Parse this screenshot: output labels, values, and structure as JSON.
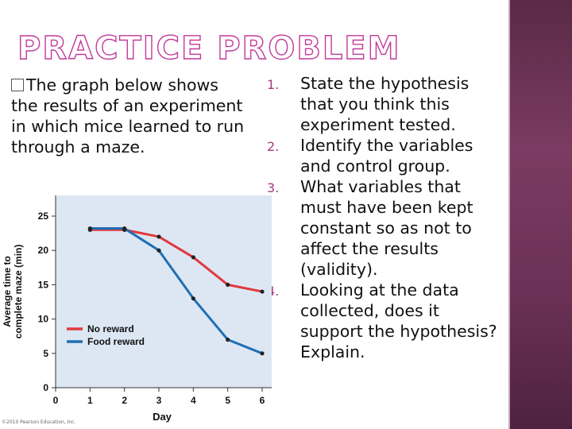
{
  "slide": {
    "title": "PRACTICE PROBLEM",
    "intro": "The graph below shows the results of an experiment in which mice learned to run through a maze.",
    "questions": [
      {
        "num": "1.",
        "text": "State the hypothesis that you think this experiment tested."
      },
      {
        "num": "2.",
        "text": "Identify the variables and control group."
      },
      {
        "num": "3.",
        "text": "What variables that must have been kept constant  so as not to affect the results (validity)."
      },
      {
        "num": "4.",
        "text": "Looking at the data collected, does it support the hypothesis? Explain."
      }
    ],
    "credit": "©2010 Pearson Education, Inc."
  },
  "colors": {
    "accent": "#c23a9a",
    "sidebar": "#6a3055",
    "no_reward": "#e0393e",
    "food_reward": "#1f6fb3"
  },
  "chart_data": {
    "type": "line",
    "x": [
      1,
      2,
      3,
      4,
      5,
      6
    ],
    "xticks": [
      0,
      1,
      2,
      3,
      4,
      5,
      6
    ],
    "yticks": [
      0,
      5,
      10,
      15,
      20,
      25
    ],
    "xlim": [
      0,
      6
    ],
    "ylim": [
      0,
      25
    ],
    "xlabel": "Day",
    "ylabel_line1": "Average time to",
    "ylabel_line2": "complete maze (min)",
    "legend_position": "lower-left",
    "series": [
      {
        "name": "No reward",
        "color": "#e0393e",
        "values": [
          23,
          23,
          22,
          19,
          15,
          14
        ]
      },
      {
        "name": "Food reward",
        "color": "#1f6fb3",
        "values": [
          23.2,
          23.2,
          20,
          13,
          7,
          5
        ]
      }
    ]
  }
}
